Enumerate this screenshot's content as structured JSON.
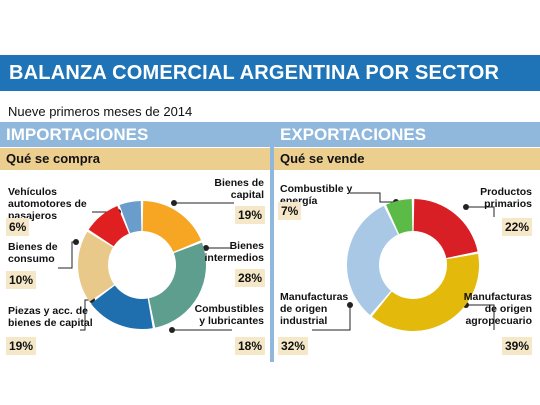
{
  "title": "BALANZA COMERCIAL ARGENTINA POR SECTOR",
  "subtitle": "Nueve primeros meses de 2014",
  "left": {
    "section": "IMPORTACIONES",
    "subsection": "Qué se compra"
  },
  "right": {
    "section": "EXPORTACIONES",
    "subsection": "Qué se vende"
  },
  "colors": {
    "title_bar": "#1e74b7",
    "section_head": "#8fb8dc",
    "sub_head": "#eccf8f"
  },
  "chart_data": [
    {
      "type": "pie",
      "title": "Importaciones",
      "slices": [
        {
          "label": "Bienes de capital",
          "value": 19,
          "pct_text": "19%",
          "color": "#f6a623"
        },
        {
          "label": "Bienes intermedios",
          "value": 28,
          "pct_text": "28%",
          "color": "#5e9e8e"
        },
        {
          "label": "Combustibles y lubricantes",
          "value": 18,
          "pct_text": "18%",
          "color": "#1f6fae"
        },
        {
          "label": "Piezas y acc. de bienes de capital",
          "value": 19,
          "pct_text": "19%",
          "color": "#e9c98a"
        },
        {
          "label": "Bienes de consumo",
          "value": 10,
          "pct_text": "10%",
          "color": "#e02020"
        },
        {
          "label": "Vehículos automotores de pasajeros",
          "value": 6,
          "pct_text": "6%",
          "color": "#6a9ccc"
        }
      ]
    },
    {
      "type": "pie",
      "title": "Exportaciones",
      "slices": [
        {
          "label": "Productos primarios",
          "value": 22,
          "pct_text": "22%",
          "color": "#d81f26"
        },
        {
          "label": "Manufacturas de origen agropecuario",
          "value": 39,
          "pct_text": "39%",
          "color": "#e3b90b"
        },
        {
          "label": "Manufacturas de origen industrial",
          "value": 32,
          "pct_text": "32%",
          "color": "#a9c8e6"
        },
        {
          "label": "Combustible y energía",
          "value": 7,
          "pct_text": "7%",
          "color": "#5cba47"
        }
      ]
    }
  ]
}
